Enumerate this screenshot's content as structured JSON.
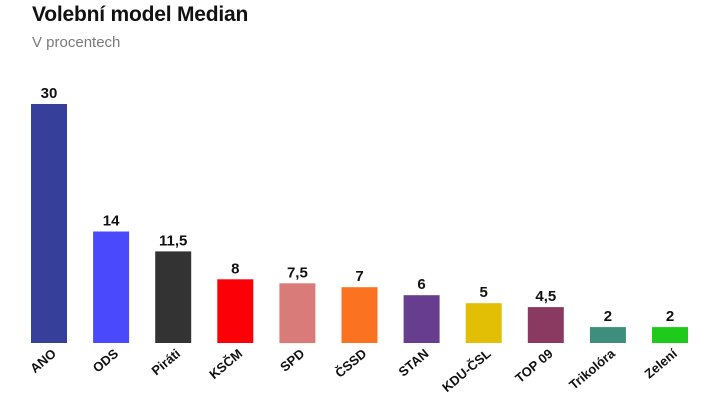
{
  "header": {
    "title": "Volební model Median",
    "subtitle": "V procentech"
  },
  "chart_data": {
    "type": "bar",
    "title": "Volební model Median",
    "subtitle": "V procentech",
    "categories": [
      "ANO",
      "ODS",
      "Piráti",
      "KSČM",
      "SPD",
      "ČSSD",
      "STAN",
      "KDU-ČSL",
      "TOP 09",
      "Trikolóra",
      "Zelení"
    ],
    "values": [
      30,
      14,
      11.5,
      8,
      7.5,
      7,
      6,
      5,
      4.5,
      2,
      2
    ],
    "value_labels": [
      "30",
      "14",
      "11,5",
      "8",
      "7,5",
      "7",
      "6",
      "5",
      "4,5",
      "2",
      "2"
    ],
    "colors": [
      "#36409a",
      "#4a4afc",
      "#333333",
      "#fb0007",
      "#d97c79",
      "#fb7320",
      "#673d8f",
      "#e2be04",
      "#8a3a60",
      "#3d8e7c",
      "#1ecb1c"
    ],
    "xlabel": "",
    "ylabel": "",
    "ylim": [
      0,
      30
    ],
    "grid": false,
    "legend": "none"
  }
}
